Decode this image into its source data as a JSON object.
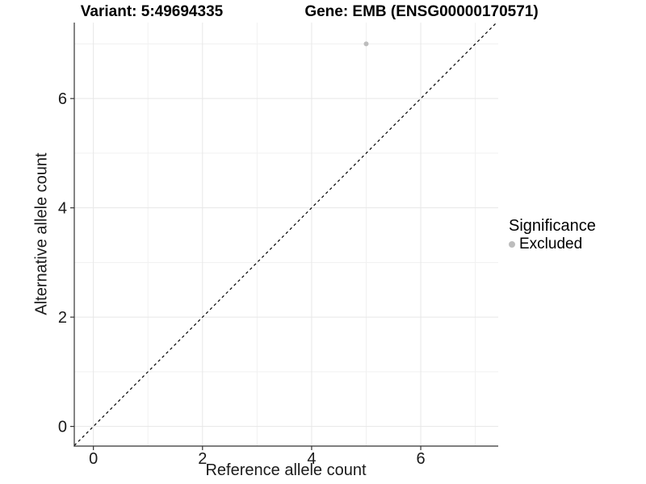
{
  "header": {
    "variant_title": "Variant: 5:49694335",
    "gene_title": "Gene: EMB (ENSG00000170571)"
  },
  "legend": {
    "title": "Significance",
    "items": [
      {
        "label": "Excluded",
        "color": "#bdbdbd"
      }
    ]
  },
  "chart_data": {
    "type": "scatter",
    "title_left": "Variant: 5:49694335",
    "title_right": "Gene: EMB (ENSG00000170571)",
    "xlabel": "Reference allele count",
    "ylabel": "Alternative allele count",
    "xlim": [
      -0.35,
      7.42
    ],
    "ylim": [
      -0.36,
      7.39
    ],
    "x_ticks": [
      0,
      2,
      4,
      6
    ],
    "y_ticks": [
      0,
      2,
      4,
      6
    ],
    "x_minor_ticks": [
      1,
      3,
      5,
      7
    ],
    "y_minor_ticks": [
      1,
      3,
      5,
      7
    ],
    "grid": true,
    "legend_title": "Significance",
    "legend_position": "right",
    "series": [
      {
        "name": "Excluded",
        "points": [
          {
            "x": 5,
            "y": 7
          }
        ]
      }
    ],
    "reference_line": {
      "equation": "y = x",
      "style": "dashed",
      "color": "#000000"
    },
    "colors": {
      "excluded_point": "#bdbdbd",
      "grid_major": "#e7e7e7",
      "grid_minor": "#f1f1f1",
      "axis_line": "#333333",
      "tick_mark": "#333333"
    }
  }
}
